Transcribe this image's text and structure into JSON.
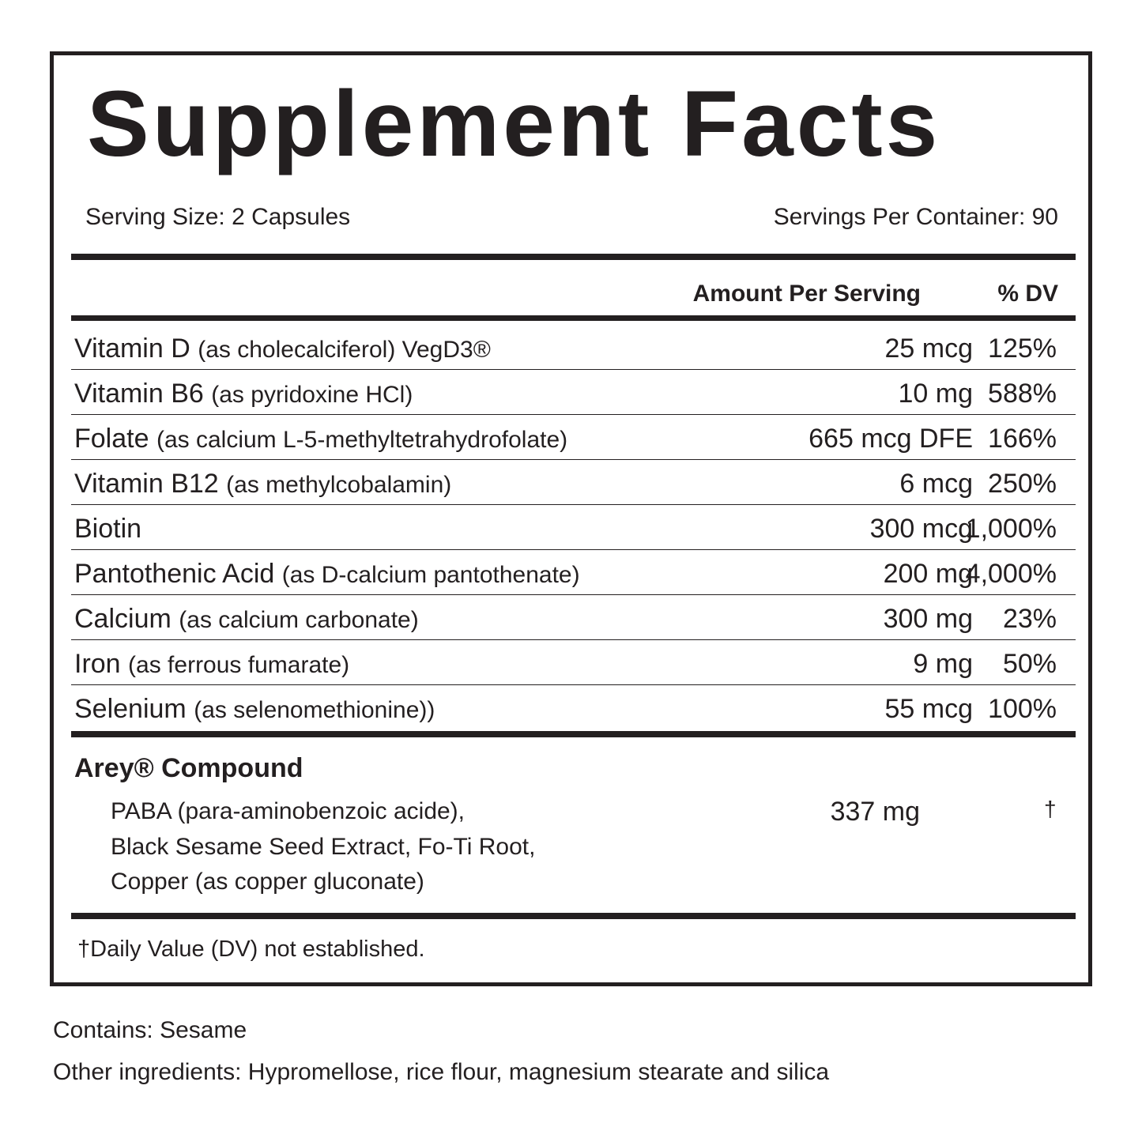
{
  "title": "Supplement Facts",
  "serving_size": "Serving Size: 2 Capsules",
  "servings_per_container": "Servings Per Container: 90",
  "header": {
    "amount": "Amount Per Serving",
    "dv": "% DV"
  },
  "nutrients": [
    {
      "name": "Vitamin D",
      "source": "(as cholecalciferol) VegD3®",
      "amount": "25 mcg",
      "dv": "125%"
    },
    {
      "name": "Vitamin B6",
      "source": "(as pyridoxine HCl)",
      "amount": "10 mg",
      "dv": "588%"
    },
    {
      "name": "Folate",
      "source": "(as calcium L-5-methyltetrahydrofolate)",
      "amount": "665 mcg DFE",
      "dv": "166%"
    },
    {
      "name": "Vitamin B12",
      "source": "(as methylcobalamin)",
      "amount": "6 mcg",
      "dv": "250%"
    },
    {
      "name": "Biotin",
      "source": "",
      "amount": "300 mcg",
      "dv": "1,000%"
    },
    {
      "name": "Pantothenic Acid",
      "source": "(as D-calcium pantothenate)",
      "amount": "200 mg",
      "dv": "4,000%"
    },
    {
      "name": "Calcium",
      "source": "(as calcium carbonate)",
      "amount": "300 mg",
      "dv": "23%"
    },
    {
      "name": "Iron",
      "source": "(as ferrous fumarate)",
      "amount": "9 mg",
      "dv": "50%"
    },
    {
      "name": "Selenium",
      "source": "(as selenomethionine))",
      "amount": "55 mcg",
      "dv": "100%"
    }
  ],
  "compound": {
    "name": "Arey® Compound",
    "lines": [
      "PABA (para-aminobenzoic acide),",
      "Black Sesame Seed Extract, Fo-Ti Root,",
      "Copper (as copper gluconate)"
    ],
    "amount": "337 mg",
    "dv": "†"
  },
  "footnote": "†Daily Value (DV) not established.",
  "contains": "Contains: Sesame",
  "other_ingredients": "Other ingredients: Hypromellose, rice flour, magnesium stearate and silica"
}
